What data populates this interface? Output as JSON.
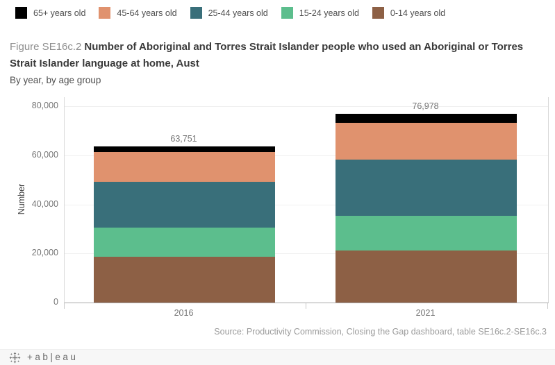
{
  "title": {
    "prefix": "Figure SE16c.2",
    "main": "Number of Aboriginal and Torres Strait Islander people who used an Aboriginal or Torres Strait Islander language at home, Aust",
    "subtitle": "By year, by age group"
  },
  "chart_data": {
    "type": "bar",
    "stacked": true,
    "title": "Figure SE16c.2 Number of Aboriginal and Torres Strait Islander people who used an Aboriginal or Torres Strait Islander language at home, Aust",
    "subtitle": "By year, by age group",
    "categories": [
      "2016",
      "2021"
    ],
    "series": [
      {
        "name": "0-14 years old",
        "color": "#8d6045",
        "values": [
          18660,
          21250
        ]
      },
      {
        "name": "15-24 years old",
        "color": "#5cbe8d",
        "values": [
          11790,
          13990
        ]
      },
      {
        "name": "25-44 years old",
        "color": "#396f7a",
        "values": [
          18820,
          23120
        ]
      },
      {
        "name": "45-64 years old",
        "color": "#e0926e",
        "values": [
          11990,
          14820
        ]
      },
      {
        "name": "65+ years old",
        "color": "#000000",
        "values": [
          2491,
          3798
        ]
      }
    ],
    "totals": [
      63751,
      76978
    ],
    "total_labels": [
      "63,751",
      "76,978"
    ],
    "ylabel": "Number",
    "ylim": [
      0,
      83700
    ],
    "yticks": [
      0,
      20000,
      40000,
      60000,
      80000
    ],
    "ytick_labels": [
      "0",
      "20,000",
      "40,000",
      "60,000",
      "80,000"
    ],
    "grid": true,
    "legend_position": "top"
  },
  "source": "Source: Productivity Commission, Closing the Gap dashboard, table SE16c.2-SE16c.3",
  "footer": {
    "brand_text": "+ab|eau"
  }
}
